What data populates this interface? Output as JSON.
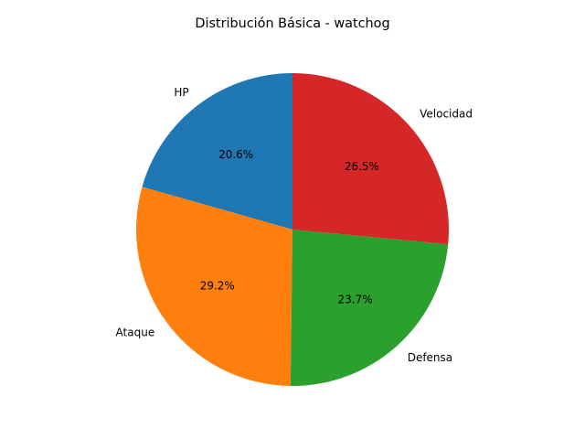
{
  "chart_data": {
    "type": "pie",
    "title": "Distribución Básica - watchog",
    "categories": [
      "HP",
      "Ataque",
      "Defensa",
      "Velocidad"
    ],
    "values": [
      20.6,
      29.2,
      23.7,
      26.5
    ],
    "percent_labels": [
      "20.6%",
      "29.2%",
      "23.7%",
      "26.5%"
    ],
    "colors": [
      "#1f77b4",
      "#ff7f0e",
      "#2ca02c",
      "#d62728"
    ],
    "start_angle_deg": 90,
    "direction": "counterclockwise",
    "legend": "none"
  }
}
